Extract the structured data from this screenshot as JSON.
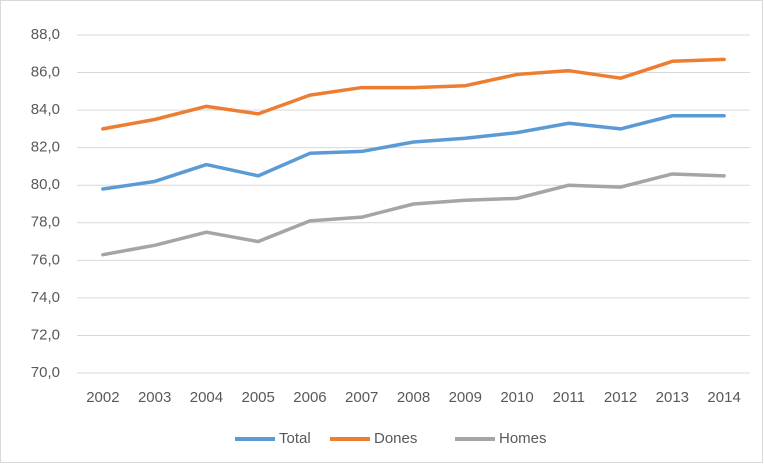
{
  "chart_data": {
    "type": "line",
    "categories": [
      "2002",
      "2003",
      "2004",
      "2005",
      "2006",
      "2007",
      "2008",
      "2009",
      "2010",
      "2011",
      "2012",
      "2013",
      "2014"
    ],
    "series": [
      {
        "name": "Total",
        "color": "#5b9bd5",
        "values": [
          79.8,
          80.2,
          81.1,
          80.5,
          81.7,
          81.8,
          82.3,
          82.5,
          82.8,
          83.3,
          83.0,
          83.7,
          83.7
        ]
      },
      {
        "name": "Dones",
        "color": "#ed7d31",
        "values": [
          83.0,
          83.5,
          84.2,
          83.8,
          84.8,
          85.2,
          85.2,
          85.3,
          85.9,
          86.1,
          85.7,
          86.6,
          86.7
        ]
      },
      {
        "name": "Homes",
        "color": "#a5a5a5",
        "values": [
          76.3,
          76.8,
          77.5,
          77.0,
          78.1,
          78.3,
          79.0,
          79.2,
          79.3,
          80.0,
          79.9,
          80.6,
          80.5
        ]
      }
    ],
    "ylim": [
      70,
      88
    ],
    "yticks": [
      {
        "value": 70,
        "label": "70,0"
      },
      {
        "value": 72,
        "label": "72,0"
      },
      {
        "value": 74,
        "label": "74,0"
      },
      {
        "value": 76,
        "label": "76,0"
      },
      {
        "value": 78,
        "label": "78,0"
      },
      {
        "value": 80,
        "label": "80,0"
      },
      {
        "value": 82,
        "label": "82,0"
      },
      {
        "value": 84,
        "label": "84,0"
      },
      {
        "value": 86,
        "label": "86,0"
      },
      {
        "value": 88,
        "label": "88,0"
      }
    ],
    "grid": true,
    "legend": "bottom"
  }
}
